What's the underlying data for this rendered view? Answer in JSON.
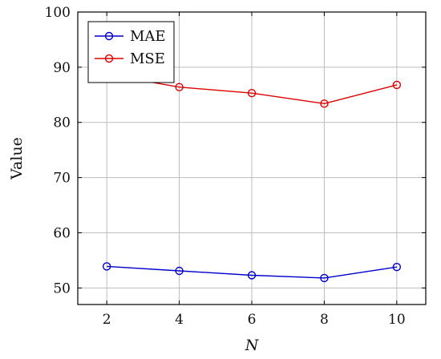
{
  "chart_data": {
    "type": "line",
    "title": "",
    "xlabel": "N",
    "ylabel": "Value",
    "x": [
      2,
      4,
      6,
      8,
      10
    ],
    "xlim": [
      1.2,
      10.8
    ],
    "ylim": [
      47,
      100
    ],
    "xticks": [
      "2",
      "4",
      "6",
      "8",
      "10"
    ],
    "yticks": [
      "50",
      "60",
      "70",
      "80",
      "90",
      "100"
    ],
    "grid": true,
    "legend_position": "top-left",
    "series": [
      {
        "name": "MAE",
        "color": "#0000cc",
        "marker": "circle",
        "values": [
          53.9,
          53.1,
          52.3,
          51.8,
          53.8
        ]
      },
      {
        "name": "MSE",
        "color": "#dd0000",
        "marker": "circle",
        "values": [
          88.7,
          86.4,
          85.3,
          83.4,
          86.8
        ]
      }
    ]
  }
}
